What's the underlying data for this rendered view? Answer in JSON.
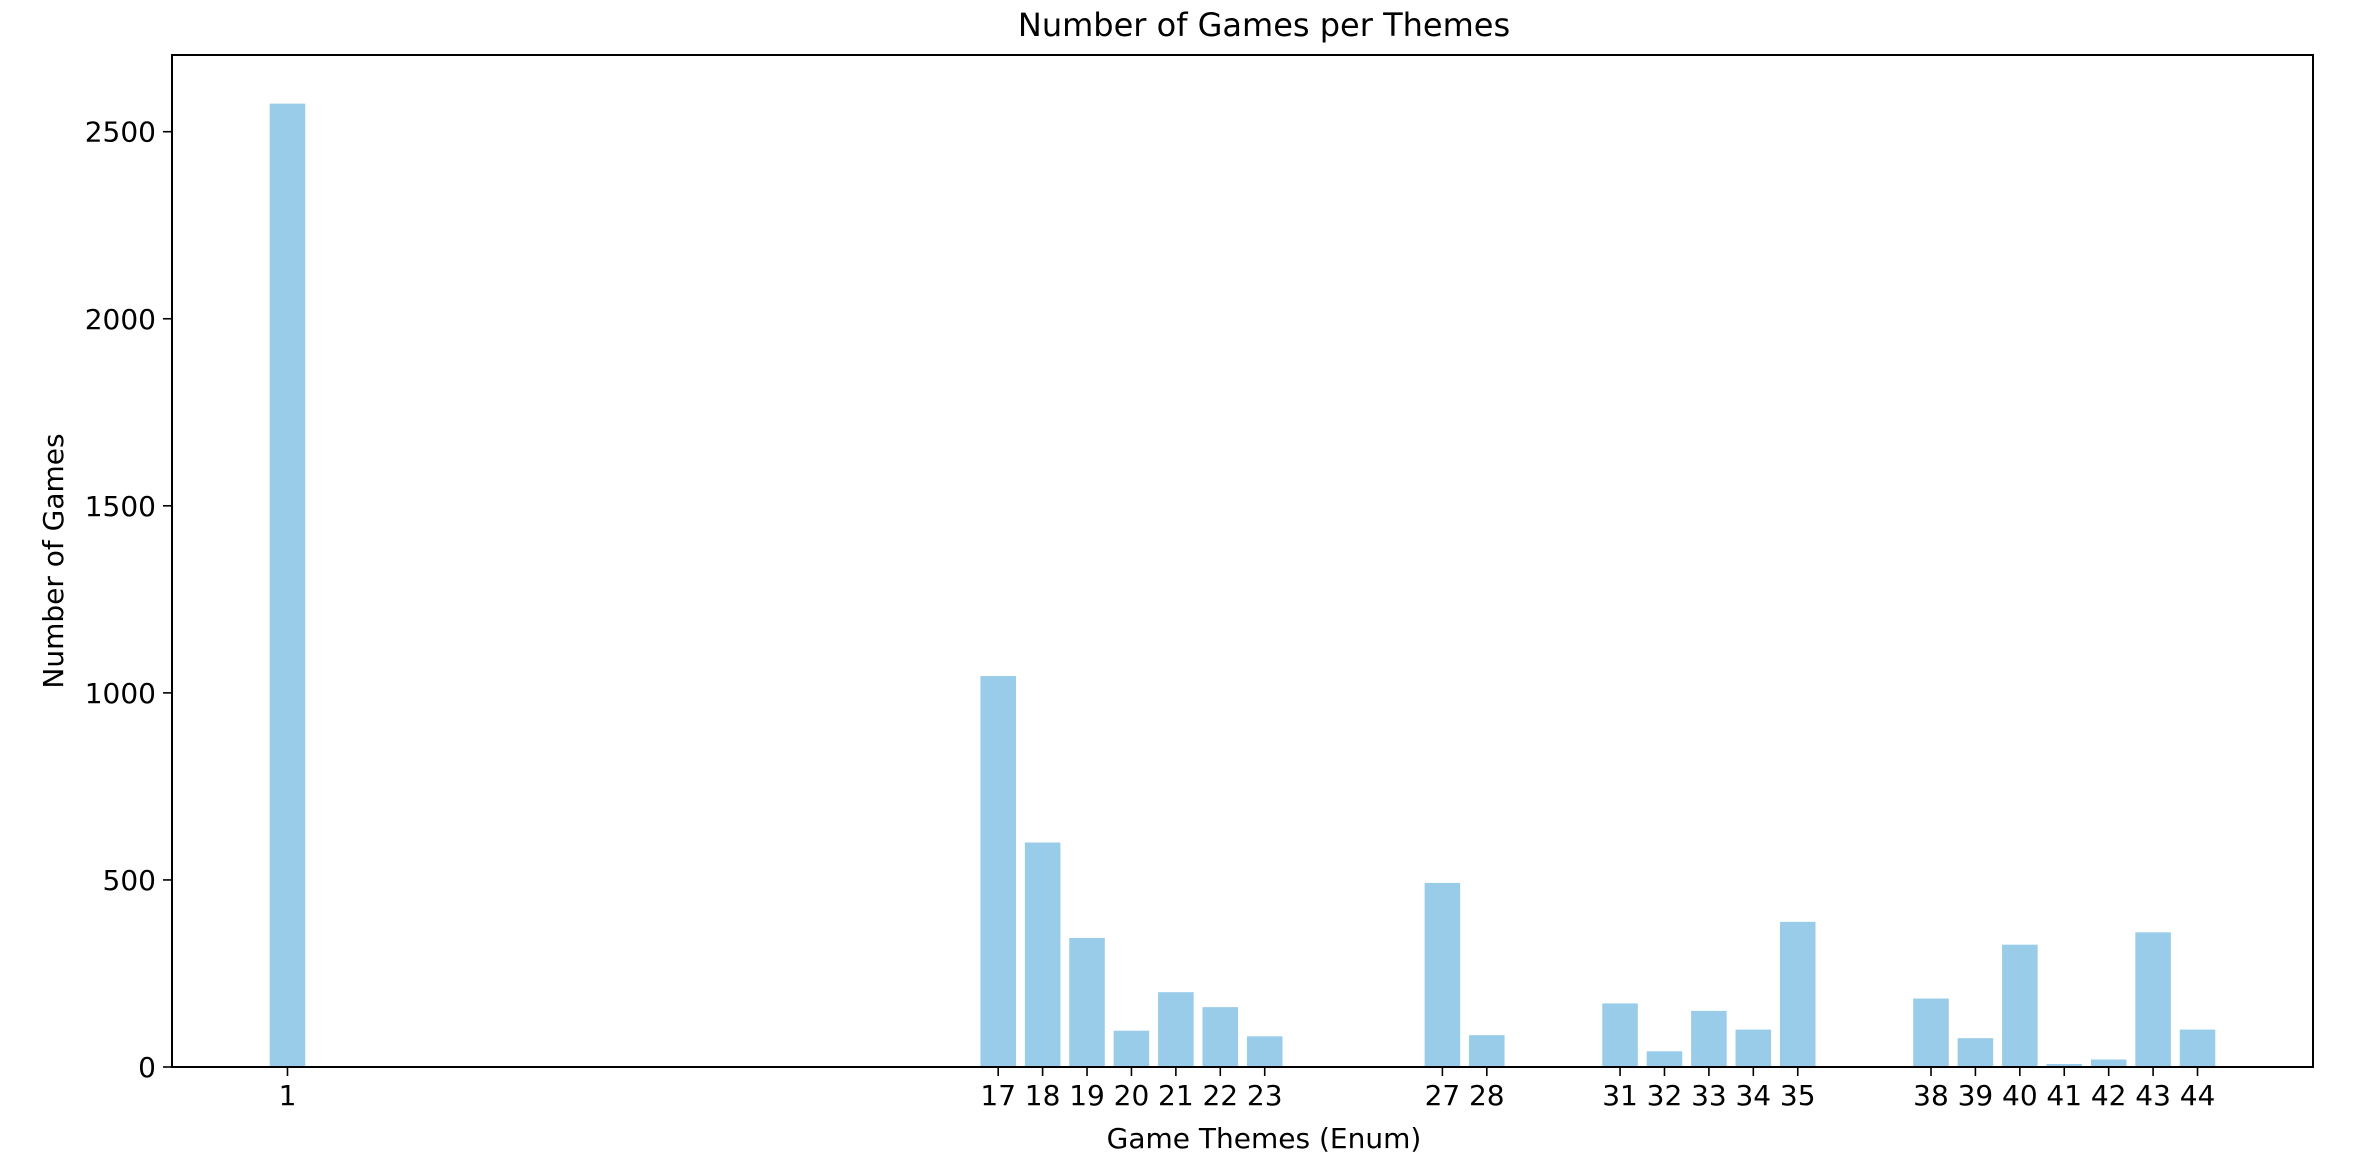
{
  "chart_data": {
    "type": "bar",
    "title": "Number of Games per Themes",
    "xlabel": "Game Themes (Enum)",
    "ylabel": "Number of Games",
    "categories": [
      "1",
      "17",
      "18",
      "19",
      "20",
      "21",
      "22",
      "23",
      "27",
      "28",
      "31",
      "32",
      "33",
      "34",
      "35",
      "38",
      "39",
      "40",
      "41",
      "42",
      "43",
      "44"
    ],
    "x": [
      1,
      17,
      18,
      19,
      20,
      21,
      22,
      23,
      27,
      28,
      31,
      32,
      33,
      34,
      35,
      38,
      39,
      40,
      41,
      42,
      43,
      44
    ],
    "values": [
      2575,
      1045,
      600,
      345,
      97,
      200,
      160,
      82,
      492,
      85,
      170,
      42,
      150,
      100,
      388,
      183,
      77,
      327,
      8,
      20,
      360,
      100
    ],
    "xlim": [
      -1.6,
      46.6
    ],
    "ylim": [
      0,
      2705
    ],
    "yticks": [
      0,
      500,
      1000,
      1500,
      2000,
      2500
    ],
    "bar_color": "#98cce8",
    "grid": false,
    "legend": false
  }
}
